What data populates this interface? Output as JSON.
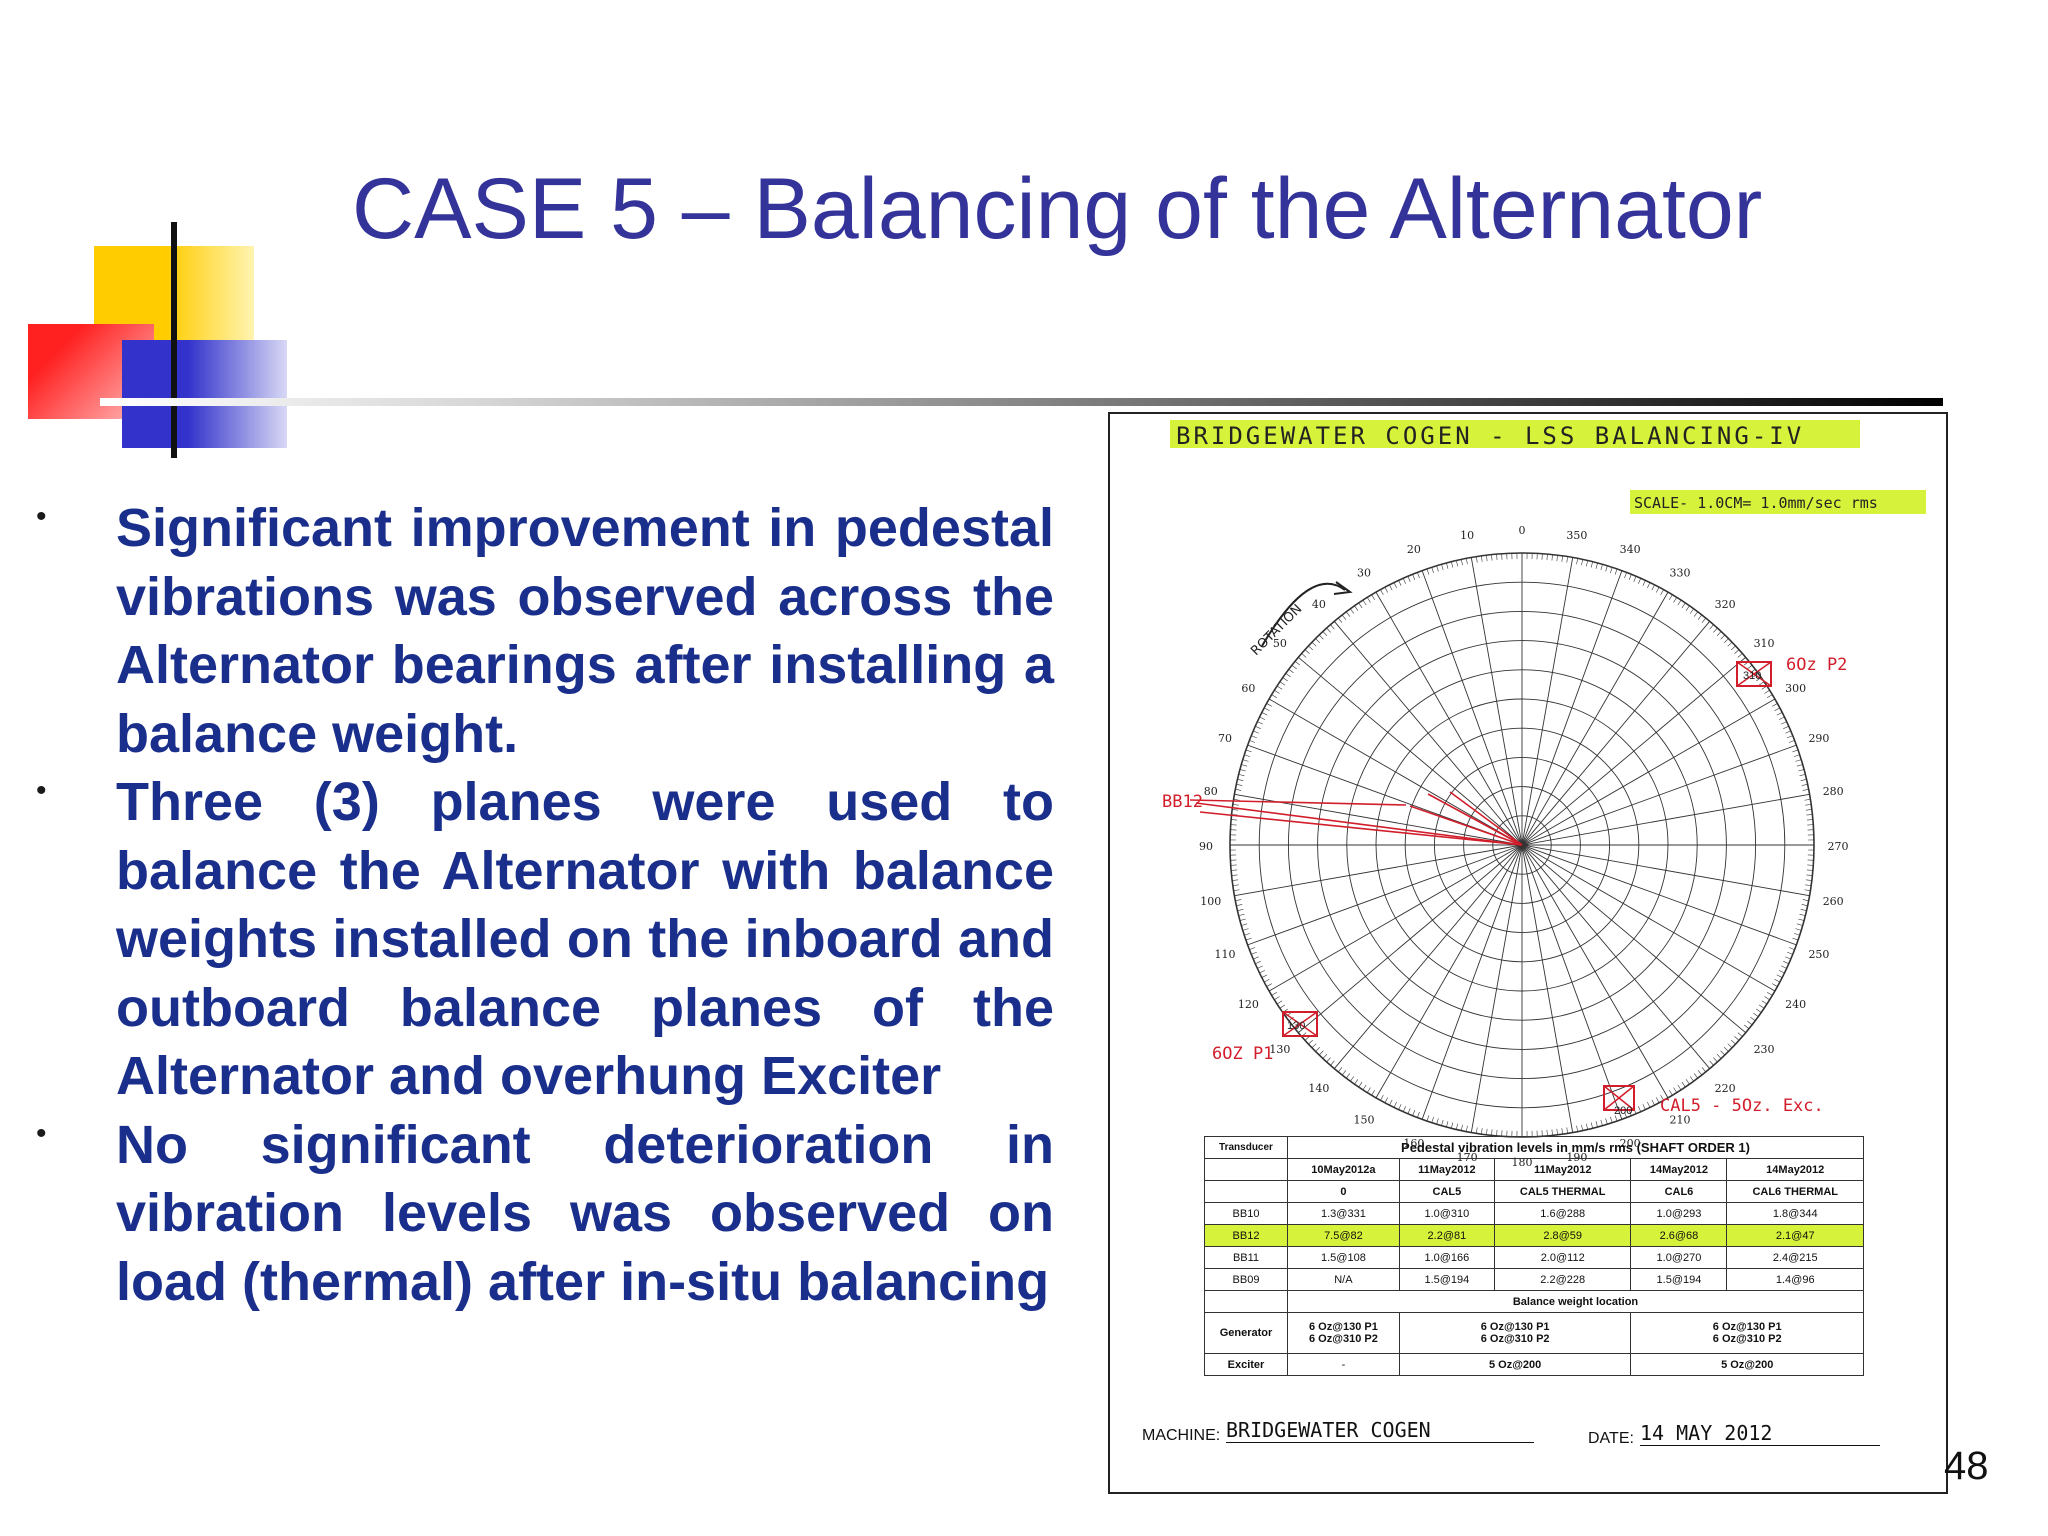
{
  "slide": {
    "title": "CASE 5 – Balancing of the Alternator",
    "page_number": "48"
  },
  "bullets": [
    "Significant improvement in pedestal vibrations was observed across the Alternator bearings after installing a balance weight.",
    "Three (3) planes were used to balance the Alternator with balance weights installed on the inboard and outboard balance planes of the Alternator and overhung Exciter",
    "No significant deterioration in vibration levels was observed on load (thermal) after in-situ balancing"
  ],
  "figure": {
    "heading": "BRIDGEWATER COGEN - LSS BALANCING-IV",
    "scale_note": "SCALE- 1.0CM= 1.0mm/sec rms",
    "rotation_label": "ROTATION",
    "polar_angles": [
      "0",
      "10",
      "20",
      "30",
      "40",
      "50",
      "60",
      "70",
      "80",
      "90",
      "100",
      "110",
      "120",
      "130",
      "140",
      "150",
      "160",
      "170",
      "180",
      "190",
      "200",
      "210",
      "220",
      "230",
      "240",
      "250",
      "260",
      "270",
      "280",
      "290",
      "300",
      "310",
      "320",
      "330",
      "340",
      "350"
    ],
    "annotations": {
      "bb12": "BB12",
      "p2_weight": "6Oz P2",
      "p1_weight": "6OZ P1",
      "cal5_exc": "CAL5 - 5Oz. Exc.",
      "box_310": "310",
      "box_130": "130",
      "box_200": "200"
    },
    "table": {
      "title": "Pedestal vibration levels in mm/s rms (SHAFT ORDER 1)",
      "transducer_header": "Transducer",
      "dates": [
        "10May2012a",
        "11May2012",
        "11May2012",
        "14May2012",
        "14May2012"
      ],
      "runs": [
        "0",
        "CAL5",
        "CAL5 THERMAL",
        "CAL6",
        "CAL6 THERMAL"
      ],
      "rows": [
        {
          "name": "BB10",
          "values": [
            "1.3@331",
            "1.0@310",
            "1.6@288",
            "1.0@293",
            "1.8@344"
          ]
        },
        {
          "name": "BB12",
          "values": [
            "7.5@82",
            "2.2@81",
            "2.8@59",
            "2.6@68",
            "2.1@47"
          ]
        },
        {
          "name": "BB11",
          "values": [
            "1.5@108",
            "1.0@166",
            "2.0@112",
            "1.0@270",
            "2.4@215"
          ]
        },
        {
          "name": "BB09",
          "values": [
            "N/A",
            "1.5@194",
            "2.2@228",
            "1.5@194",
            "1.4@96"
          ]
        }
      ],
      "balance_header": "Balance weight location",
      "generator_label": "Generator",
      "exciter_label": "Exciter",
      "generator": [
        "6 Oz@130 P1\n6 Oz@310 P2",
        "6 Oz@130 P1\n6 Oz@310 P2",
        "6 Oz@130 P1\n6 Oz@310 P2"
      ],
      "exciter": [
        "-",
        "5 Oz@200",
        "5 Oz@200"
      ]
    },
    "machine_label": "MACHINE:",
    "machine_value": "BRIDGEWATER COGEN",
    "date_label": "DATE:",
    "date_value": "14 MAY 2012"
  },
  "colors": {
    "title": "#333399",
    "bullet_text": "#1a2f8c",
    "highlight": "#d7f23a",
    "red_annotation": "#d21e2b"
  }
}
